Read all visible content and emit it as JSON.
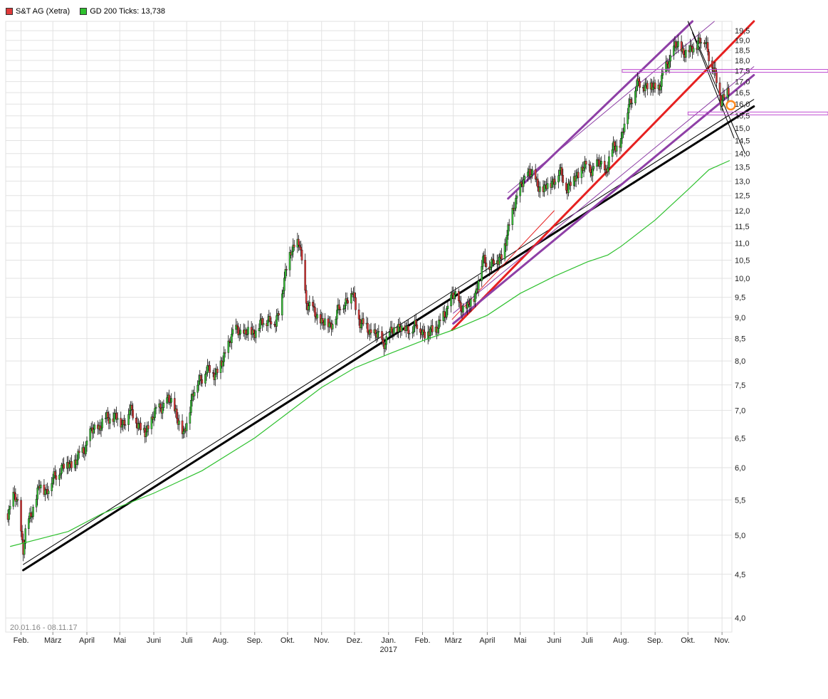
{
  "legend": [
    {
      "label": "S&T AG (Xetra)",
      "color": "#e03a3a"
    },
    {
      "label": "GD 200 Ticks: 13,738",
      "color": "#2fc12f"
    }
  ],
  "range_label": "20.01.16 - 08.11.17",
  "chart_data": {
    "type": "line",
    "subtype": "candlestick",
    "y_scale": "log",
    "ylim": [
      3.85,
      20.0
    ],
    "y_ticks": [
      "4,0",
      "4,5",
      "5,0",
      "5,5",
      "6,0",
      "6,5",
      "7,0",
      "7,5",
      "8,0",
      "8,5",
      "9,0",
      "9,5",
      "10,0",
      "10,5",
      "11,0",
      "11,5",
      "12,0",
      "12,5",
      "13,0",
      "13,5",
      "14,0",
      "14,5",
      "15,0",
      "15,5",
      "16,0",
      "16,5",
      "17,0",
      "17,5",
      "18,0",
      "18,5",
      "19,0",
      "19,5"
    ],
    "x_ticks": [
      {
        "label": "Feb.",
        "date": "2016-02-01"
      },
      {
        "label": "März",
        "date": "2016-03-01"
      },
      {
        "label": "April",
        "date": "2016-04-01"
      },
      {
        "label": "Mai",
        "date": "2016-05-01"
      },
      {
        "label": "Juni",
        "date": "2016-06-01"
      },
      {
        "label": "Juli",
        "date": "2016-07-01"
      },
      {
        "label": "Aug.",
        "date": "2016-08-01"
      },
      {
        "label": "Sep.",
        "date": "2016-09-01"
      },
      {
        "label": "Okt.",
        "date": "2016-10-01"
      },
      {
        "label": "Nov.",
        "date": "2016-11-01"
      },
      {
        "label": "Dez.",
        "date": "2016-12-01"
      },
      {
        "label": "Jan.",
        "sublabel": "2017",
        "date": "2017-01-01"
      },
      {
        "label": "Feb.",
        "date": "2017-02-01"
      },
      {
        "label": "März",
        "date": "2017-03-01"
      },
      {
        "label": "April",
        "date": "2017-04-01"
      },
      {
        "label": "Mai",
        "date": "2017-05-01"
      },
      {
        "label": "Juni",
        "date": "2017-06-01"
      },
      {
        "label": "Juli",
        "date": "2017-07-01"
      },
      {
        "label": "Aug.",
        "date": "2017-08-01"
      },
      {
        "label": "Sep.",
        "date": "2017-09-01"
      },
      {
        "label": "Okt.",
        "date": "2017-10-01"
      },
      {
        "label": "Nov.",
        "date": "2017-11-01"
      }
    ],
    "series": [
      {
        "name": "S&T AG (Xetra)",
        "style": "candles",
        "points": [
          [
            "2016-01-20",
            5.3
          ],
          [
            "2016-01-26",
            5.55
          ],
          [
            "2016-01-29",
            5.45
          ],
          [
            "2016-02-03",
            4.8
          ],
          [
            "2016-02-06",
            5.1
          ],
          [
            "2016-02-12",
            5.4
          ],
          [
            "2016-02-18",
            5.7
          ],
          [
            "2016-02-24",
            5.65
          ],
          [
            "2016-03-01",
            5.8
          ],
          [
            "2016-03-08",
            6.0
          ],
          [
            "2016-03-15",
            6.05
          ],
          [
            "2016-03-22",
            6.1
          ],
          [
            "2016-03-29",
            6.3
          ],
          [
            "2016-04-05",
            6.6
          ],
          [
            "2016-04-12",
            6.7
          ],
          [
            "2016-04-19",
            6.85
          ],
          [
            "2016-04-26",
            6.9
          ],
          [
            "2016-05-03",
            6.75
          ],
          [
            "2016-05-10",
            7.0
          ],
          [
            "2016-05-17",
            6.8
          ],
          [
            "2016-05-24",
            6.55
          ],
          [
            "2016-05-31",
            6.9
          ],
          [
            "2016-06-07",
            7.05
          ],
          [
            "2016-06-14",
            7.2
          ],
          [
            "2016-06-21",
            7.0
          ],
          [
            "2016-06-28",
            6.5
          ],
          [
            "2016-07-05",
            7.2
          ],
          [
            "2016-07-12",
            7.6
          ],
          [
            "2016-07-19",
            7.8
          ],
          [
            "2016-07-26",
            7.75
          ],
          [
            "2016-08-02",
            7.9
          ],
          [
            "2016-08-09",
            8.5
          ],
          [
            "2016-08-16",
            8.7
          ],
          [
            "2016-08-23",
            8.6
          ],
          [
            "2016-08-30",
            8.65
          ],
          [
            "2016-09-06",
            8.8
          ],
          [
            "2016-09-13",
            9.0
          ],
          [
            "2016-09-20",
            8.8
          ],
          [
            "2016-09-27",
            9.8
          ],
          [
            "2016-10-04",
            10.8
          ],
          [
            "2016-10-08",
            11.0
          ],
          [
            "2016-10-12",
            10.9
          ],
          [
            "2016-10-18",
            9.4
          ],
          [
            "2016-10-25",
            9.1
          ],
          [
            "2016-11-01",
            8.9
          ],
          [
            "2016-11-08",
            8.8
          ],
          [
            "2016-11-15",
            9.1
          ],
          [
            "2016-11-22",
            9.4
          ],
          [
            "2016-11-29",
            9.6
          ],
          [
            "2016-12-06",
            8.9
          ],
          [
            "2016-12-13",
            8.7
          ],
          [
            "2016-12-20",
            8.6
          ],
          [
            "2016-12-27",
            8.4
          ],
          [
            "2017-01-03",
            8.6
          ],
          [
            "2017-01-10",
            8.8
          ],
          [
            "2017-01-17",
            8.7
          ],
          [
            "2017-01-24",
            8.8
          ],
          [
            "2017-01-31",
            8.7
          ],
          [
            "2017-02-07",
            8.6
          ],
          [
            "2017-02-14",
            8.8
          ],
          [
            "2017-02-21",
            9.0
          ],
          [
            "2017-02-28",
            9.6
          ],
          [
            "2017-03-07",
            9.3
          ],
          [
            "2017-03-14",
            9.2
          ],
          [
            "2017-03-21",
            9.6
          ],
          [
            "2017-03-28",
            10.5
          ],
          [
            "2017-04-04",
            10.4
          ],
          [
            "2017-04-11",
            10.5
          ],
          [
            "2017-04-18",
            11.0
          ],
          [
            "2017-04-25",
            12.2
          ],
          [
            "2017-05-02",
            12.8
          ],
          [
            "2017-05-09",
            13.4
          ],
          [
            "2017-05-16",
            12.9
          ],
          [
            "2017-05-23",
            12.7
          ],
          [
            "2017-05-30",
            13.0
          ],
          [
            "2017-06-06",
            13.3
          ],
          [
            "2017-06-13",
            12.8
          ],
          [
            "2017-06-20",
            13.1
          ],
          [
            "2017-06-27",
            13.5
          ],
          [
            "2017-07-04",
            13.4
          ],
          [
            "2017-07-11",
            13.6
          ],
          [
            "2017-07-18",
            13.4
          ],
          [
            "2017-07-25",
            14.2
          ],
          [
            "2017-08-01",
            14.5
          ],
          [
            "2017-08-08",
            16.0
          ],
          [
            "2017-08-15",
            16.8
          ],
          [
            "2017-08-22",
            16.9
          ],
          [
            "2017-08-29",
            16.7
          ],
          [
            "2017-09-05",
            16.8
          ],
          [
            "2017-09-12",
            17.8
          ],
          [
            "2017-09-19",
            18.7
          ],
          [
            "2017-09-26",
            18.5
          ],
          [
            "2017-10-03",
            18.4
          ],
          [
            "2017-10-10",
            19.0
          ],
          [
            "2017-10-17",
            18.9
          ],
          [
            "2017-10-24",
            17.6
          ],
          [
            "2017-10-31",
            16.2
          ],
          [
            "2017-11-04",
            16.5
          ],
          [
            "2017-11-08",
            16.4
          ]
        ]
      },
      {
        "name": "GD 200 Ticks: 13,738",
        "style": "line",
        "color": "#2fc12f",
        "points": [
          [
            "2016-01-22",
            4.85
          ],
          [
            "2016-03-15",
            5.05
          ],
          [
            "2016-04-15",
            5.3
          ],
          [
            "2016-06-01",
            5.6
          ],
          [
            "2016-07-15",
            5.95
          ],
          [
            "2016-09-01",
            6.5
          ],
          [
            "2016-10-01",
            6.95
          ],
          [
            "2016-11-01",
            7.45
          ],
          [
            "2016-12-01",
            7.85
          ],
          [
            "2017-01-01",
            8.15
          ],
          [
            "2017-02-01",
            8.45
          ],
          [
            "2017-03-01",
            8.7
          ],
          [
            "2017-04-01",
            9.05
          ],
          [
            "2017-05-01",
            9.6
          ],
          [
            "2017-06-01",
            10.05
          ],
          [
            "2017-07-01",
            10.45
          ],
          [
            "2017-07-20",
            10.65
          ],
          [
            "2017-08-01",
            10.9
          ],
          [
            "2017-09-01",
            11.7
          ],
          [
            "2017-10-01",
            12.7
          ],
          [
            "2017-10-20",
            13.4
          ],
          [
            "2017-11-08",
            13.74
          ]
        ]
      }
    ],
    "trendlines": [
      {
        "color": "#000000",
        "width": 3,
        "from": [
          "2016-02-03",
          4.55
        ],
        "to": [
          "2017-11-30",
          15.9
        ]
      },
      {
        "color": "#000000",
        "width": 1,
        "from": [
          "2016-02-03",
          4.62
        ],
        "to": [
          "2017-11-30",
          16.2
        ]
      },
      {
        "color": "#e62020",
        "width": 3,
        "from": [
          "2017-02-28",
          8.7
        ],
        "to": [
          "2017-11-30",
          20.0
        ]
      },
      {
        "color": "#e62020",
        "width": 1,
        "from": [
          "2017-02-28",
          8.95
        ],
        "to": [
          "2017-06-01",
          12.0
        ]
      },
      {
        "color": "#8e3fa6",
        "width": 3,
        "from": [
          "2017-03-01",
          8.85
        ],
        "to": [
          "2017-11-30",
          17.3
        ]
      },
      {
        "color": "#8e3fa6",
        "width": 1,
        "from": [
          "2017-03-01",
          9.1
        ],
        "to": [
          "2017-11-30",
          17.7
        ]
      },
      {
        "color": "#8e3fa6",
        "width": 3,
        "from": [
          "2017-04-20",
          12.4
        ],
        "to": [
          "2017-10-05",
          20.0
        ]
      },
      {
        "color": "#8e3fa6",
        "width": 1,
        "from": [
          "2017-04-20",
          12.6
        ],
        "to": [
          "2017-10-25",
          20.0
        ]
      },
      {
        "color": "#000000",
        "width": 1,
        "from": [
          "2017-10-01",
          20.0
        ],
        "to": [
          "2017-11-22",
          14.0
        ]
      },
      {
        "color": "#000000",
        "width": 1,
        "from": [
          "2017-10-05",
          19.4
        ],
        "to": [
          "2017-11-12",
          14.6
        ]
      }
    ],
    "horizontal_bands": [
      {
        "color": "#c04fd0",
        "y": 17.5,
        "from": "2017-08-02"
      },
      {
        "color": "#c04fd0",
        "y": 15.6,
        "from": "2017-10-01"
      }
    ],
    "markers": [
      {
        "type": "circle",
        "color": "#ff8a1f",
        "at": [
          "2017-11-09",
          15.95
        ]
      }
    ],
    "grid": true,
    "legend_position": "top-left"
  }
}
